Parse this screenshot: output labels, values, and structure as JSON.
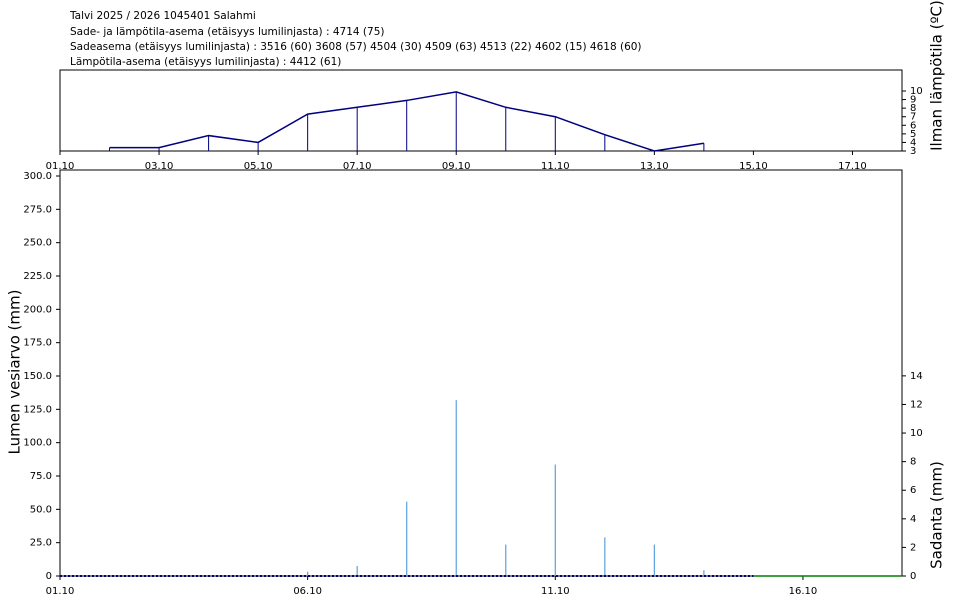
{
  "header": {
    "lines": [
      "Talvi 2025 / 2026 1045401 Salahmi",
      "Sade- ja lämpötila-asema (etäisyys lumilinjasta) :  4714 (75)",
      "Sadeasema (etäisyys lumilinjasta) :  3516 (60) 3608 (57) 4504 (30) 4509 (63) 4513 (22) 4602 (15) 4618 (60)",
      "Lämpötila-asema (etäisyys lumilinjasta) :  4412 (61)"
    ]
  },
  "chart_data": [
    {
      "type": "line",
      "ylabel": "Ilman lämpötila (ºC)",
      "xlim": [
        1,
        18
      ],
      "xticks": [
        {
          "value": 1,
          "label": "01.10"
        },
        {
          "value": 3,
          "label": "03.10"
        },
        {
          "value": 5,
          "label": "05.10"
        },
        {
          "value": 7,
          "label": "07.10"
        },
        {
          "value": 9,
          "label": "09.10"
        },
        {
          "value": 11,
          "label": "11.10"
        },
        {
          "value": 13,
          "label": "13.10"
        },
        {
          "value": 15,
          "label": "15.10"
        },
        {
          "value": 17,
          "label": "17.10"
        }
      ],
      "ylim": [
        3,
        12.45
      ],
      "yticks": [
        3,
        4,
        5,
        6,
        7,
        8,
        9,
        10
      ],
      "series": [
        {
          "type": "line",
          "color": "#000080",
          "stems": true,
          "x": [
            2,
            3,
            4,
            5,
            6,
            7,
            8,
            9,
            10,
            11,
            12,
            13,
            14
          ],
          "values": [
            3.4,
            3.4,
            4.8,
            4.0,
            7.3,
            8.1,
            8.9,
            9.9,
            8.1,
            7.0,
            4.9,
            3.0,
            3.9
          ]
        }
      ]
    },
    {
      "type": "combo",
      "ylabel": "Lumen vesiarvo (mm)",
      "y2label": "Sadanta (mm)",
      "xlim": [
        1,
        18
      ],
      "xticks": [
        {
          "value": 1,
          "label": "01.10"
        },
        {
          "value": 6,
          "label": "06.10"
        },
        {
          "value": 11,
          "label": "11.10"
        },
        {
          "value": 16,
          "label": "16.10"
        }
      ],
      "ylim": [
        0,
        304.5
      ],
      "yticks": [
        0,
        {
          "value": 25,
          "label": "25.0"
        },
        {
          "value": 50,
          "label": "50.0"
        },
        {
          "value": 75,
          "label": "75.0"
        },
        {
          "value": 100,
          "label": "100.0"
        },
        {
          "value": 125,
          "label": "125.0"
        },
        {
          "value": 150,
          "label": "150.0"
        },
        {
          "value": 175,
          "label": "175.0"
        },
        {
          "value": 200,
          "label": "200.0"
        },
        {
          "value": 225,
          "label": "225.0"
        },
        {
          "value": 250,
          "label": "250.0"
        },
        {
          "value": 275,
          "label": "275.0"
        },
        {
          "value": 300,
          "label": "300.0"
        }
      ],
      "y2lim": [
        0,
        28.4
      ],
      "y2ticks": [
        0,
        2,
        4,
        6,
        8,
        10,
        12,
        14
      ],
      "series": [
        {
          "type": "bar",
          "axis": "y2",
          "color": "#5aa0dc",
          "x": [
            6,
            7,
            8,
            9,
            10,
            11,
            12,
            13,
            14
          ],
          "values": [
            0.3,
            0.7,
            5.2,
            12.3,
            2.2,
            7.8,
            2.7,
            2.2,
            0.4
          ]
        },
        {
          "type": "line",
          "color": "#000080",
          "dash": true,
          "x": [
            1,
            15
          ],
          "values": [
            0,
            0
          ]
        },
        {
          "type": "line",
          "color": "#008000",
          "x": [
            15,
            18
          ],
          "values": [
            0,
            0
          ]
        }
      ]
    }
  ]
}
